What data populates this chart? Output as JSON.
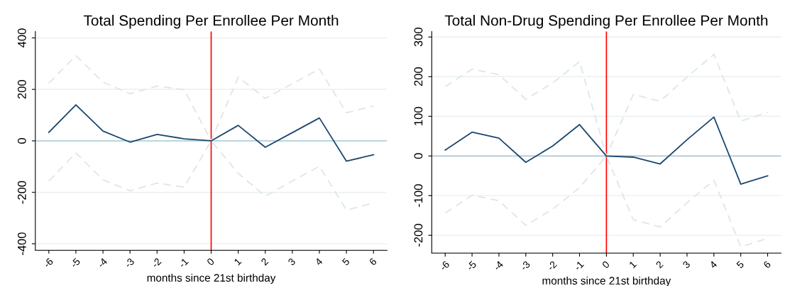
{
  "chart_data": [
    {
      "type": "line",
      "title": "Total Spending Per Enrollee Per Month",
      "xlabel": "months since 21st birthday",
      "x": [
        -6,
        -5,
        -4,
        -3,
        -2,
        -1,
        0,
        1,
        2,
        3,
        4,
        5,
        6
      ],
      "xlim": [
        -6.5,
        6.5
      ],
      "xticks": [
        -6,
        -5,
        -4,
        -3,
        -2,
        -1,
        0,
        1,
        2,
        3,
        4,
        5,
        6
      ],
      "ylim": [
        -425,
        425
      ],
      "yticks": [
        -400,
        -200,
        0,
        200,
        400
      ],
      "grid": "y",
      "legend": false,
      "series": [
        {
          "color": "#dde6ea",
          "line_style": "dashed",
          "values": [
            224,
            331,
            228,
            183,
            213,
            199,
            0,
            248,
            165,
            222,
            279,
            109,
            135
          ]
        },
        {
          "color": "#dde6ea",
          "line_style": "dashed",
          "values": [
            -156,
            -47,
            -151,
            -194,
            -164,
            -180,
            0,
            -126,
            -215,
            -156,
            -99,
            -269,
            -242
          ]
        },
        {
          "color": "#1a476f",
          "line_style": "solid",
          "values": [
            33,
            140,
            38,
            -5,
            25,
            8,
            0,
            60,
            -25,
            32,
            89,
            -79,
            -54
          ]
        }
      ],
      "ref_lines": [
        {
          "axis": "y",
          "value": 0,
          "color": "#a9ccd6"
        },
        {
          "axis": "x",
          "value": 0,
          "color": "#ff0000"
        }
      ]
    },
    {
      "type": "line",
      "title": "Total Non-Drug Spending Per Enrollee Per Month",
      "xlabel": "months since 21st birthday",
      "x": [
        -6,
        -5,
        -4,
        -3,
        -2,
        -1,
        0,
        1,
        2,
        3,
        4,
        5,
        6
      ],
      "xlim": [
        -6.5,
        6.5
      ],
      "xticks": [
        -6,
        -5,
        -4,
        -3,
        -2,
        -1,
        0,
        1,
        2,
        3,
        4,
        5,
        6
      ],
      "ylim": [
        -245,
        314
      ],
      "yticks": [
        -200,
        -100,
        0,
        100,
        200,
        300
      ],
      "grid": "y",
      "legend": false,
      "series": [
        {
          "color": "#dde6ea",
          "line_style": "dashed",
          "values": [
            175,
            219,
            205,
            143,
            184,
            238,
            0,
            155,
            138,
            199,
            256,
            88,
            110
          ]
        },
        {
          "color": "#dde6ea",
          "line_style": "dashed",
          "values": [
            -144,
            -99,
            -113,
            -175,
            -134,
            -80,
            0,
            -161,
            -179,
            -118,
            -61,
            -229,
            -208
          ]
        },
        {
          "color": "#1a476f",
          "line_style": "solid",
          "values": [
            15,
            60,
            45,
            -16,
            25,
            79,
            0,
            -3,
            -20,
            41,
            98,
            -71,
            -50
          ]
        }
      ],
      "ref_lines": [
        {
          "axis": "y",
          "value": 0,
          "color": "#b4c8d4"
        },
        {
          "axis": "x",
          "value": 0,
          "color": "#ff0000"
        }
      ]
    }
  ]
}
